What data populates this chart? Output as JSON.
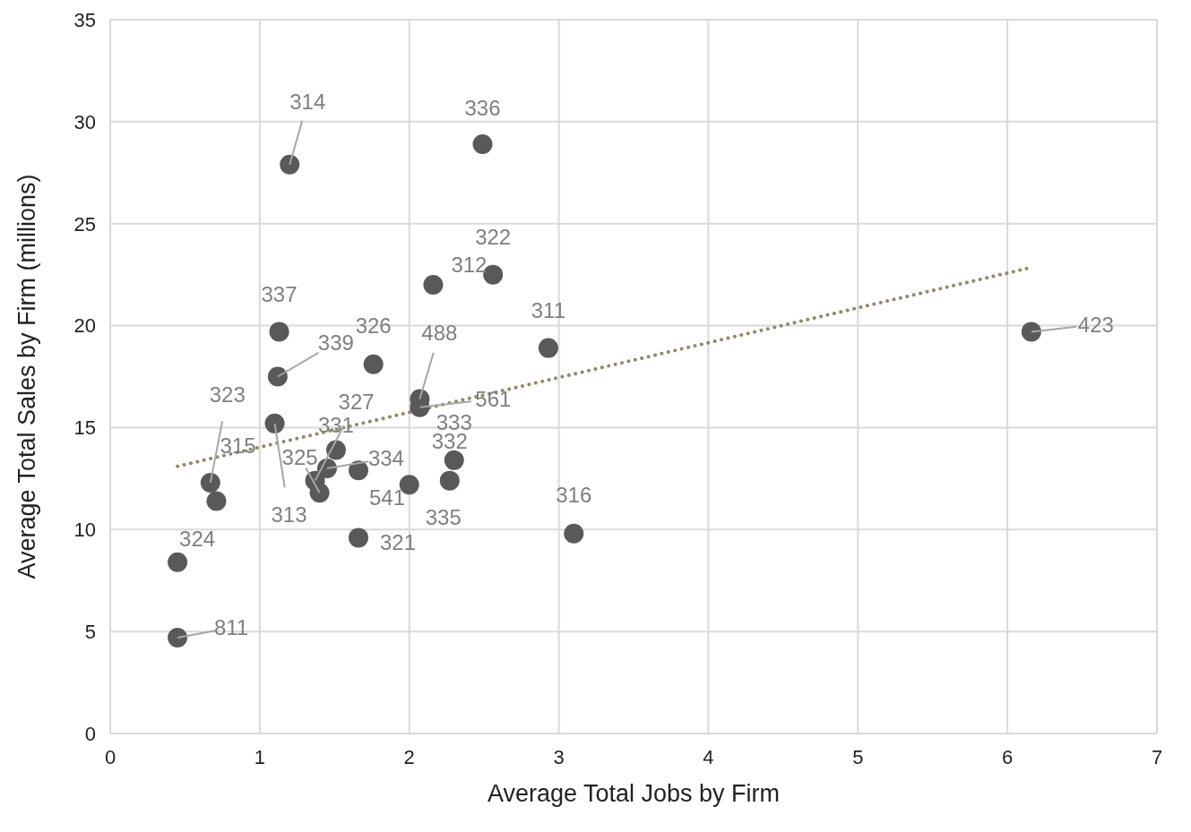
{
  "chart_data": {
    "type": "scatter",
    "xlabel": "Average Total Jobs by Firm",
    "ylabel": "Average Total Sales by Firm (millions)",
    "xlim": [
      0,
      7
    ],
    "xticks": [
      0,
      1,
      2,
      3,
      4,
      5,
      6,
      7
    ],
    "ylim": [
      0,
      35
    ],
    "yticks": [
      0,
      5,
      10,
      15,
      20,
      25,
      30,
      35
    ],
    "grid": true,
    "marker": "circle",
    "series": [
      {
        "color": "#595959",
        "x": [
          1.2,
          2.49,
          2.56,
          2.16,
          1.13,
          1.12,
          1.76,
          2.07,
          2.07,
          2.93,
          6.16,
          1.1,
          0.67,
          0.71,
          1.51,
          1.45,
          1.37,
          1.4,
          1.66,
          2.0,
          2.3,
          2.27,
          3.1,
          1.66,
          0.45,
          0.45
        ],
        "values": [
          27.9,
          28.9,
          22.5,
          22.0,
          19.7,
          17.5,
          18.1,
          16.4,
          16.0,
          18.9,
          19.7,
          15.2,
          12.3,
          11.4,
          13.9,
          13.0,
          12.4,
          11.8,
          12.9,
          12.2,
          13.4,
          12.4,
          9.8,
          9.6,
          8.4,
          4.7
        ]
      },
      {
        "type": "line",
        "color": "#8f8c6c",
        "line_style": "dotted",
        "marker": "none",
        "x": [
          0.45,
          6.16
        ],
        "values": [
          13.1,
          22.85
        ]
      }
    ],
    "annotations": [
      {
        "text": "314",
        "x": 1.2,
        "y": 27.9
      },
      {
        "text": "336",
        "x": 2.49,
        "y": 28.9
      },
      {
        "text": "322",
        "x": 2.56,
        "y": 22.5
      },
      {
        "text": "312",
        "x": 2.16,
        "y": 22.0
      },
      {
        "text": "337",
        "x": 1.13,
        "y": 19.7
      },
      {
        "text": "339",
        "x": 1.12,
        "y": 17.5
      },
      {
        "text": "326",
        "x": 1.76,
        "y": 18.1
      },
      {
        "text": "488",
        "x": 2.07,
        "y": 16.4
      },
      {
        "text": "561",
        "x": 2.07,
        "y": 16.0
      },
      {
        "text": "311",
        "x": 2.93,
        "y": 18.9
      },
      {
        "text": "423",
        "x": 6.16,
        "y": 19.7
      },
      {
        "text": "313",
        "x": 1.1,
        "y": 15.2
      },
      {
        "text": "323",
        "x": 0.67,
        "y": 12.3
      },
      {
        "text": "315",
        "x": 0.71,
        "y": 11.4
      },
      {
        "text": "331",
        "x": 1.51,
        "y": 13.9
      },
      {
        "text": "334",
        "x": 1.45,
        "y": 13.0
      },
      {
        "text": "327",
        "x": 1.37,
        "y": 12.4
      },
      {
        "text": "325",
        "x": 1.4,
        "y": 11.8
      },
      {
        "text": "541",
        "x": 1.66,
        "y": 12.9
      },
      {
        "text": "335",
        "x": 2.0,
        "y": 12.2
      },
      {
        "text": "333",
        "x": 2.3,
        "y": 13.4
      },
      {
        "text": "332",
        "x": 2.27,
        "y": 12.4
      },
      {
        "text": "316",
        "x": 3.1,
        "y": 9.8
      },
      {
        "text": "321",
        "x": 1.66,
        "y": 9.6
      },
      {
        "text": "324",
        "x": 0.45,
        "y": 8.4
      },
      {
        "text": "811",
        "x": 0.45,
        "y": 4.7
      }
    ]
  }
}
